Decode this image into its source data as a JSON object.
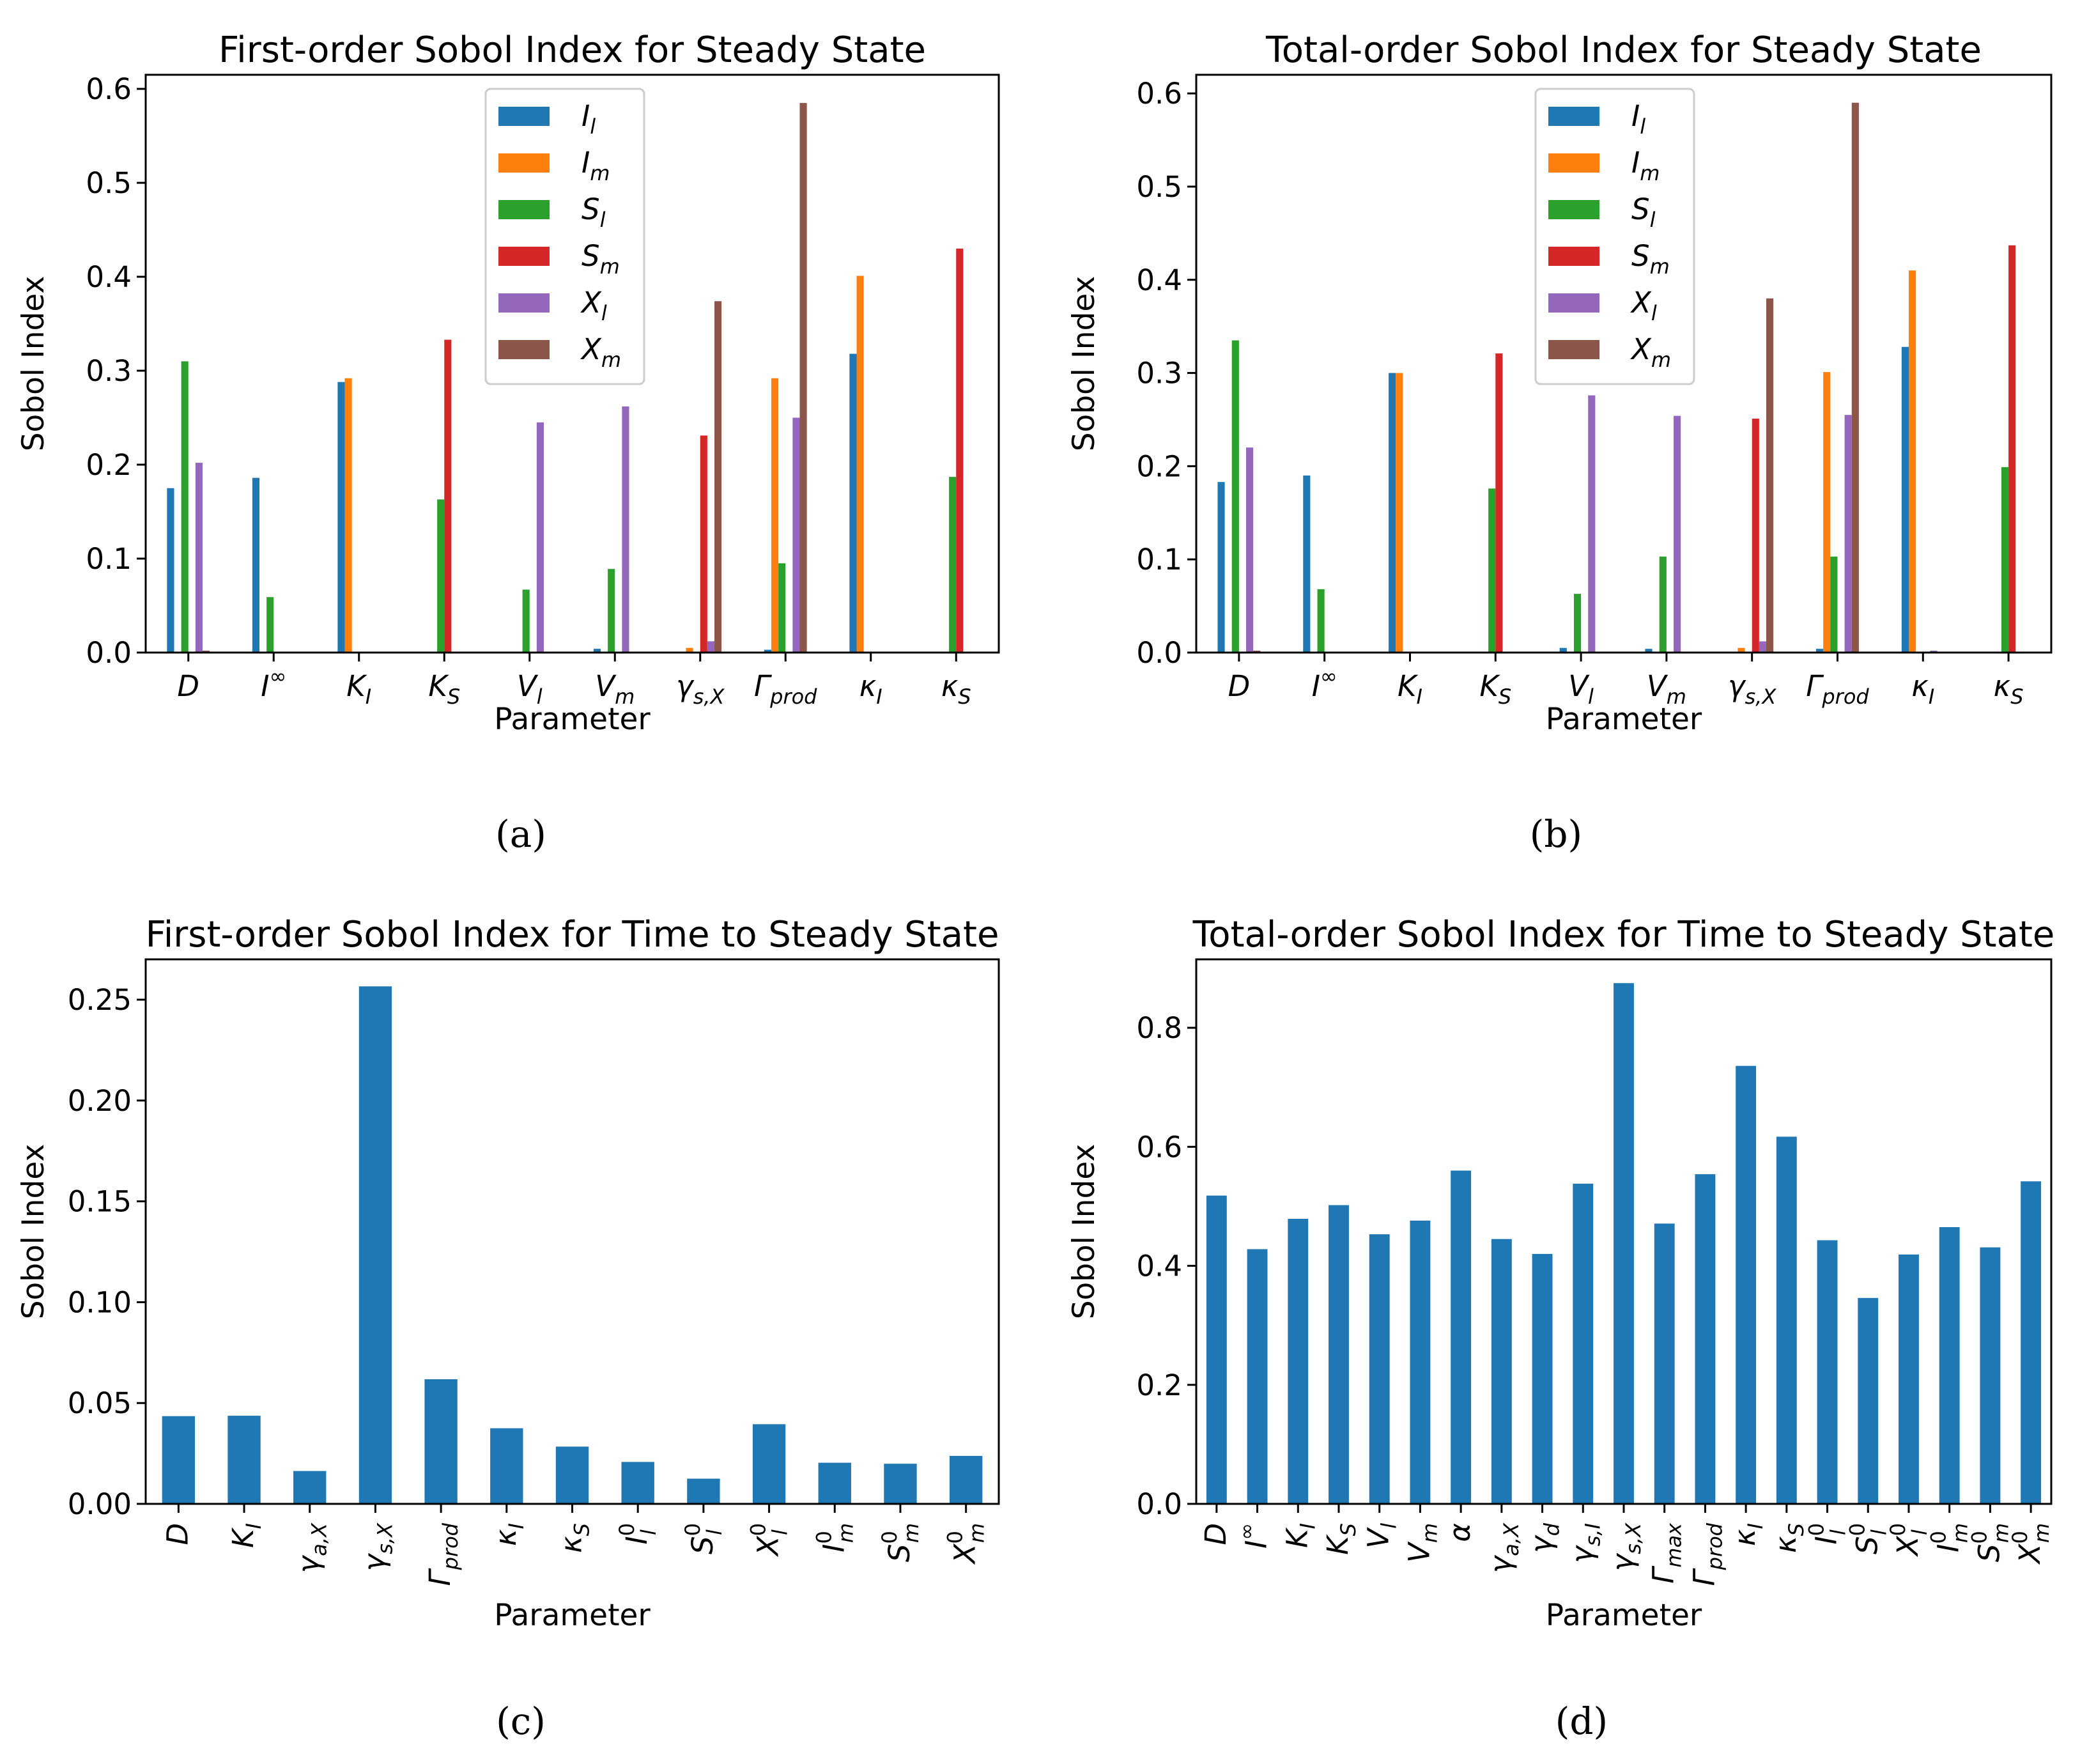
{
  "colors": {
    "I_l": "#1f77b4",
    "I_m": "#ff7f0e",
    "S_l": "#2ca02c",
    "S_m": "#d62728",
    "X_l": "#9467bd",
    "X_m": "#8c564b",
    "single": "#1f77b4"
  },
  "chart_data": [
    {
      "type": "bar",
      "title": "First-order Sobol Index for Steady State",
      "xlabel": "Parameter",
      "ylabel": "Sobol Index",
      "caption": "(a)",
      "ylim": [
        0,
        0.615
      ],
      "yticks": [
        "0.0",
        "0.1",
        "0.2",
        "0.3",
        "0.4",
        "0.5",
        "0.6"
      ],
      "legend": "top-center",
      "categories": [
        {
          "base": "D",
          "sub": "",
          "sup": ""
        },
        {
          "base": "I",
          "sub": "",
          "sup": "∞"
        },
        {
          "base": "K",
          "sub": "I",
          "sup": ""
        },
        {
          "base": "K",
          "sub": "S",
          "sup": ""
        },
        {
          "base": "V",
          "sub": "l",
          "sup": ""
        },
        {
          "base": "V",
          "sub": "m",
          "sup": ""
        },
        {
          "base": "γ",
          "sub": "s,X",
          "sup": ""
        },
        {
          "base": "Γ",
          "sub": "prod",
          "sup": ""
        },
        {
          "base": "κ",
          "sub": "I",
          "sup": ""
        },
        {
          "base": "κ",
          "sub": "S",
          "sup": ""
        }
      ],
      "series": [
        {
          "key": "I_l",
          "base": "I",
          "sub": "l",
          "values": [
            0.175,
            0.186,
            0.288,
            0.0,
            0.001,
            0.004,
            0.001,
            0.003,
            0.318,
            0.0
          ]
        },
        {
          "key": "I_m",
          "base": "I",
          "sub": "m",
          "values": [
            0.0,
            0.0,
            0.292,
            0.0,
            0.0,
            0.0,
            0.005,
            0.292,
            0.401,
            0.0
          ]
        },
        {
          "key": "S_l",
          "base": "S",
          "sub": "l",
          "values": [
            0.31,
            0.059,
            0.0,
            0.163,
            0.067,
            0.089,
            0.0,
            0.095,
            0.0,
            0.187
          ]
        },
        {
          "key": "S_m",
          "base": "S",
          "sub": "m",
          "values": [
            0.0,
            0.0,
            0.0,
            0.333,
            0.0,
            0.0,
            0.231,
            0.0,
            0.0,
            0.43
          ]
        },
        {
          "key": "X_l",
          "base": "X",
          "sub": "l",
          "values": [
            0.202,
            0.0,
            0.0,
            0.0,
            0.245,
            0.262,
            0.012,
            0.25,
            0.0,
            0.0
          ]
        },
        {
          "key": "X_m",
          "base": "X",
          "sub": "m",
          "values": [
            0.002,
            0.0,
            0.0,
            0.0,
            0.0,
            0.0,
            0.374,
            0.585,
            0.0,
            0.0
          ]
        }
      ]
    },
    {
      "type": "bar",
      "title": "Total-order Sobol Index for Steady State",
      "xlabel": "Parameter",
      "ylabel": "Sobol Index",
      "caption": "(b)",
      "ylim": [
        0,
        0.62
      ],
      "yticks": [
        "0.0",
        "0.1",
        "0.2",
        "0.3",
        "0.4",
        "0.5",
        "0.6"
      ],
      "legend": "top-center",
      "categories": [
        {
          "base": "D",
          "sub": "",
          "sup": ""
        },
        {
          "base": "I",
          "sub": "",
          "sup": "∞"
        },
        {
          "base": "K",
          "sub": "I",
          "sup": ""
        },
        {
          "base": "K",
          "sub": "S",
          "sup": ""
        },
        {
          "base": "V",
          "sub": "l",
          "sup": ""
        },
        {
          "base": "V",
          "sub": "m",
          "sup": ""
        },
        {
          "base": "γ",
          "sub": "s,X",
          "sup": ""
        },
        {
          "base": "Γ",
          "sub": "prod",
          "sup": ""
        },
        {
          "base": "κ",
          "sub": "I",
          "sup": ""
        },
        {
          "base": "κ",
          "sub": "S",
          "sup": ""
        }
      ],
      "series": [
        {
          "key": "I_l",
          "base": "I",
          "sub": "l",
          "values": [
            0.183,
            0.19,
            0.3,
            0.0,
            0.005,
            0.004,
            0.0,
            0.004,
            0.328,
            0.0
          ]
        },
        {
          "key": "I_m",
          "base": "I",
          "sub": "m",
          "values": [
            0.0,
            0.0,
            0.3,
            0.0,
            0.0,
            0.0,
            0.005,
            0.301,
            0.41,
            0.0
          ]
        },
        {
          "key": "S_l",
          "base": "S",
          "sub": "l",
          "values": [
            0.335,
            0.068,
            0.0,
            0.176,
            0.063,
            0.103,
            0.0,
            0.103,
            0.0,
            0.199
          ]
        },
        {
          "key": "S_m",
          "base": "S",
          "sub": "m",
          "values": [
            0.0,
            0.0,
            0.0,
            0.321,
            0.0,
            0.0,
            0.251,
            0.0,
            0.0,
            0.437
          ]
        },
        {
          "key": "X_l",
          "base": "X",
          "sub": "l",
          "values": [
            0.22,
            0.0,
            0.0,
            0.0,
            0.276,
            0.254,
            0.012,
            0.255,
            0.002,
            0.0
          ]
        },
        {
          "key": "X_m",
          "base": "X",
          "sub": "m",
          "values": [
            0.002,
            0.0,
            0.0,
            0.0,
            0.0,
            0.0,
            0.38,
            0.59,
            0.0,
            0.0
          ]
        }
      ]
    },
    {
      "type": "bar",
      "title": "First-order Sobol Index for Time to Steady State",
      "xlabel": "Parameter",
      "ylabel": "Sobol Index",
      "caption": "(c)",
      "ylim": [
        0,
        0.27
      ],
      "yticks": [
        "0.00",
        "0.05",
        "0.10",
        "0.15",
        "0.20",
        "0.25"
      ],
      "categories": [
        {
          "base": "D",
          "sub": "",
          "sup": ""
        },
        {
          "base": "K",
          "sub": "I",
          "sup": ""
        },
        {
          "base": "γ",
          "sub": "a,X",
          "sup": ""
        },
        {
          "base": "γ",
          "sub": "s,X",
          "sup": ""
        },
        {
          "base": "Γ",
          "sub": "prod",
          "sup": ""
        },
        {
          "base": "κ",
          "sub": "I",
          "sup": ""
        },
        {
          "base": "κ",
          "sub": "S",
          "sup": ""
        },
        {
          "base": "I",
          "sub": "l",
          "sup": "0"
        },
        {
          "base": "S",
          "sub": "l",
          "sup": "0"
        },
        {
          "base": "X",
          "sub": "l",
          "sup": "0"
        },
        {
          "base": "I",
          "sub": "m",
          "sup": "0"
        },
        {
          "base": "S",
          "sub": "m",
          "sup": "0"
        },
        {
          "base": "X",
          "sub": "m",
          "sup": "0"
        }
      ],
      "values": [
        0.0435,
        0.0437,
        0.0163,
        0.2566,
        0.0618,
        0.0375,
        0.0284,
        0.0208,
        0.0125,
        0.0395,
        0.0204,
        0.0199,
        0.0238
      ]
    },
    {
      "type": "bar",
      "title": "Total-order Sobol Index for Time to Steady State",
      "xlabel": "Parameter",
      "ylabel": "Sobol Index",
      "caption": "(d)",
      "ylim": [
        0,
        0.915
      ],
      "yticks": [
        "0.0",
        "0.2",
        "0.4",
        "0.6",
        "0.8"
      ],
      "categories": [
        {
          "base": "D",
          "sub": "",
          "sup": ""
        },
        {
          "base": "I",
          "sub": "",
          "sup": "∞"
        },
        {
          "base": "K",
          "sub": "I",
          "sup": ""
        },
        {
          "base": "K",
          "sub": "S",
          "sup": ""
        },
        {
          "base": "V",
          "sub": "l",
          "sup": ""
        },
        {
          "base": "V",
          "sub": "m",
          "sup": ""
        },
        {
          "base": "α",
          "sub": "",
          "sup": ""
        },
        {
          "base": "γ",
          "sub": "a,X",
          "sup": ""
        },
        {
          "base": "γ",
          "sub": "d",
          "sup": ""
        },
        {
          "base": "γ",
          "sub": "s,I",
          "sup": ""
        },
        {
          "base": "γ",
          "sub": "s,X",
          "sup": ""
        },
        {
          "base": "Γ",
          "sub": "max",
          "sup": ""
        },
        {
          "base": "Γ",
          "sub": "prod",
          "sup": ""
        },
        {
          "base": "κ",
          "sub": "I",
          "sup": ""
        },
        {
          "base": "κ",
          "sub": "S",
          "sup": ""
        },
        {
          "base": "I",
          "sub": "l",
          "sup": "0"
        },
        {
          "base": "S",
          "sub": "l",
          "sup": "0"
        },
        {
          "base": "X",
          "sub": "l",
          "sup": "0"
        },
        {
          "base": "I",
          "sub": "m",
          "sup": "0"
        },
        {
          "base": "S",
          "sub": "m",
          "sup": "0"
        },
        {
          "base": "X",
          "sub": "m",
          "sup": "0"
        }
      ],
      "values": [
        0.518,
        0.428,
        0.479,
        0.502,
        0.453,
        0.476,
        0.56,
        0.445,
        0.42,
        0.538,
        0.875,
        0.471,
        0.554,
        0.736,
        0.617,
        0.443,
        0.346,
        0.419,
        0.465,
        0.431,
        0.542
      ]
    }
  ]
}
